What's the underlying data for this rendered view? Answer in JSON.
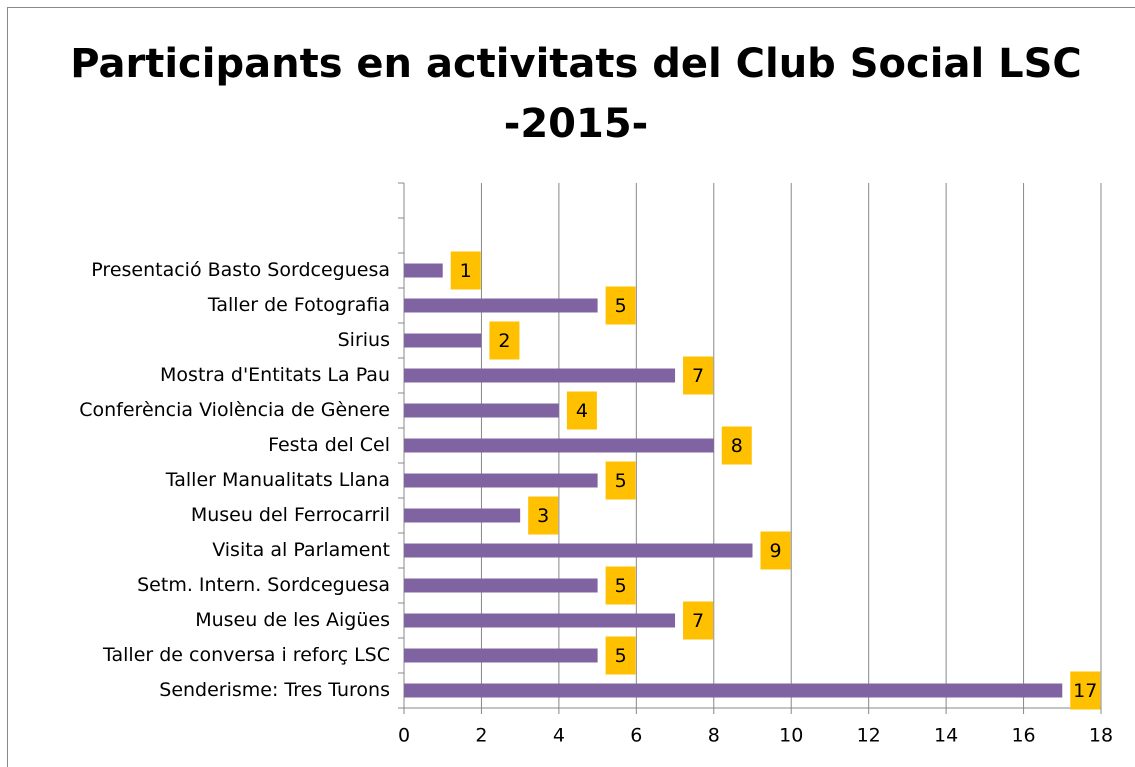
{
  "chart_data": {
    "type": "bar",
    "orientation": "horizontal",
    "title": [
      "Participants en activitats del Club Social LSC",
      "-2015-"
    ],
    "categories": [
      null,
      null,
      "Presentació Basto Sordceguesa",
      "Taller de Fotografia",
      "Sirius",
      "Mostra d'Entitats La Pau",
      "Conferència Violència de Gènere",
      "Festa del Cel",
      "Taller Manualitats Llana",
      "Museu del Ferrocarril",
      "Visita al Parlament",
      "Setm. Intern. Sordceguesa",
      "Museu de les Aigües",
      "Taller de conversa i reforç LSC",
      "Senderisme: Tres Turons"
    ],
    "values": [
      null,
      null,
      1,
      5,
      2,
      7,
      4,
      8,
      5,
      3,
      9,
      5,
      7,
      5,
      17
    ],
    "color": "#8064a2",
    "label_color": "#ffc000",
    "xlim": [
      0,
      18
    ],
    "xticks": [
      0,
      2,
      4,
      6,
      8,
      10,
      12,
      14,
      16,
      18
    ],
    "grid": true
  }
}
